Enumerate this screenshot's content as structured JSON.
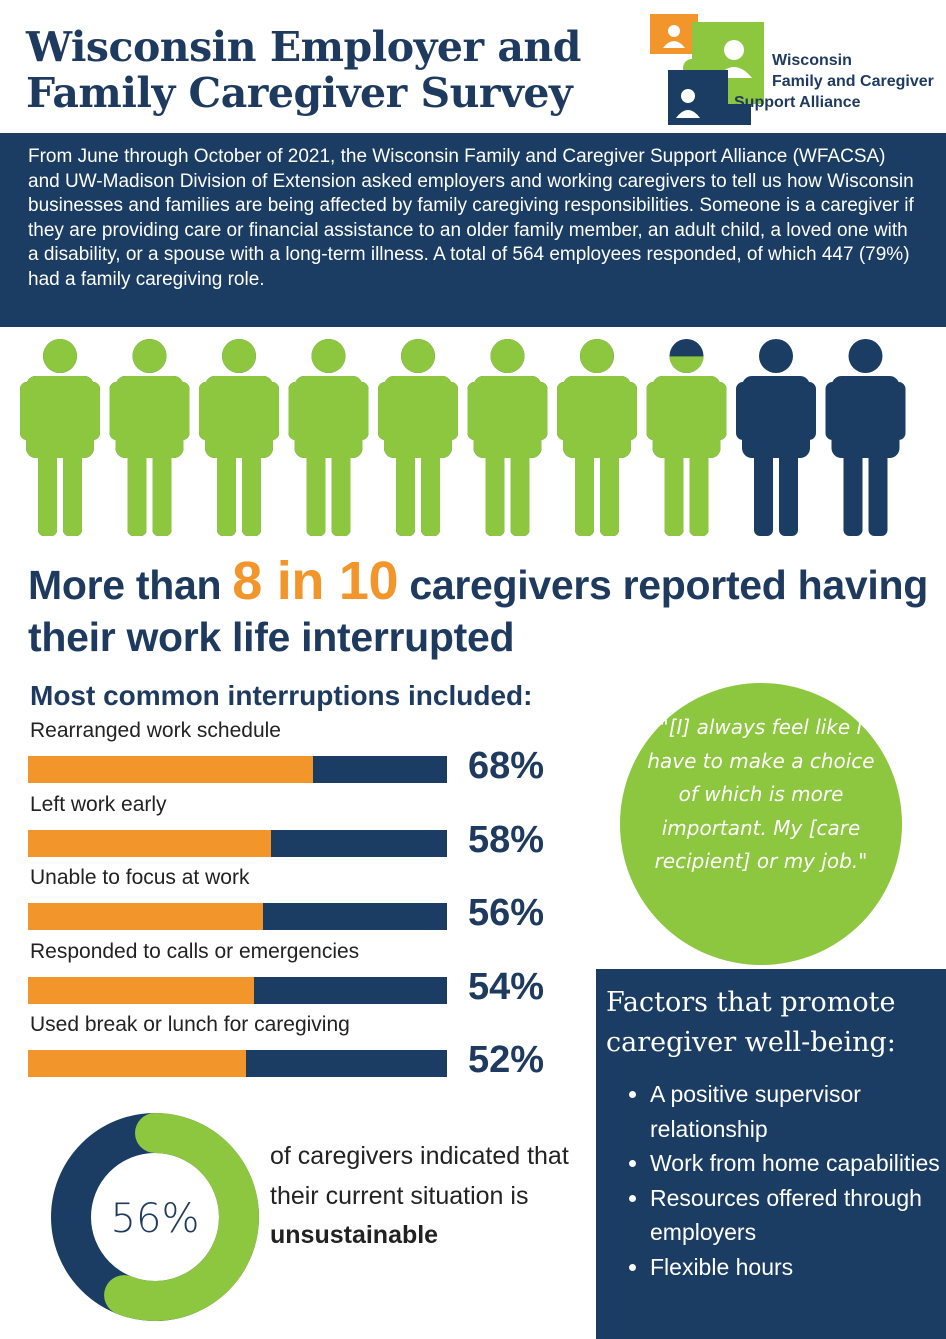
{
  "title": "Wisconsin Employer and Family Caregiver Survey",
  "logo": {
    "line1": "Wisconsin",
    "line2": "Family and Caregiver",
    "line3": "Support Alliance",
    "colors": {
      "orange": "#f2952b",
      "green": "#8dc63f",
      "navy": "#1b3d63"
    }
  },
  "intro": "From June through October of 2021, the Wisconsin Family and Caregiver Support Alliance (WFACSA) and UW-Madison Division of Extension asked employers and working caregivers to tell us how Wisconsin businesses and families are being affected by family caregiving responsibilities. Someone is a caregiver if they are providing care or financial assistance to an older family member, an adult child, a loved one with a disability, or a spouse with a long-term illness. A total of 564 employees responded, of which 447 (79%) had a family caregiving role.",
  "pictograph": {
    "total_figures": 10,
    "caregiver_fraction": 0.79,
    "colors": {
      "caregiver": "#8dc63f",
      "other": "#1b3d63"
    }
  },
  "headline": {
    "before": "More than ",
    "highlight": "8 in 10",
    "after": " caregivers reported having their work life interrupted"
  },
  "interruptions_heading": "Most common interruptions included:",
  "quote": "\"[I] always feel like I have to make a choice of which is more important. My [care recipient] or my job.\"",
  "factors": {
    "heading": "Factors that promote caregiver well-being:",
    "items": [
      "A positive supervisor relationship",
      "Work from home capabilities",
      "Resources offered through employers",
      "Flexible hours"
    ]
  },
  "unsustainable": {
    "value_label": "56%",
    "text_line": "of caregivers indicated that their current situation is ",
    "emphasis": "unsustainable"
  },
  "chart_data": [
    {
      "type": "bar",
      "categories": [
        "Rearranged work schedule",
        "Left work early",
        "Unable to focus at work",
        "Responded to calls or emergencies",
        "Used break or lunch for caregiving"
      ],
      "values": [
        68,
        58,
        56,
        54,
        52
      ],
      "value_labels": [
        "68%",
        "58%",
        "56%",
        "54%",
        "52%"
      ],
      "ylim": [
        0,
        100
      ],
      "colors": {
        "fill": "#f2952b",
        "track": "#1b3d63"
      }
    },
    {
      "type": "pie",
      "categories": [
        "unsustainable",
        "other"
      ],
      "values": [
        56,
        44
      ],
      "colors": {
        "unsustainable": "#8dc63f",
        "other": "#1b3d63"
      }
    }
  ]
}
